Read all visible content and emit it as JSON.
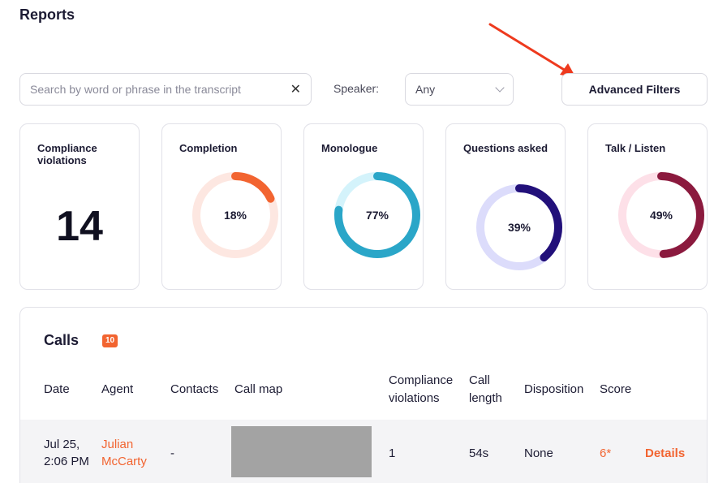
{
  "page": {
    "title": "Reports"
  },
  "filters": {
    "search_placeholder": "Search by word or phrase in the transcript",
    "search_value": "",
    "clear_symbol": "✕",
    "speaker_label": "Speaker:",
    "speaker_value": "Any",
    "advanced_filters_label": "Advanced Filters"
  },
  "metrics": [
    {
      "title": "Compliance violations",
      "value": "14"
    },
    {
      "title": "Completion",
      "percent": 18,
      "label": "18%",
      "color": "#f26430",
      "track": "#fde7e1"
    },
    {
      "title": "Monologue",
      "percent": 77,
      "label": "77%",
      "color": "#2aa6c8",
      "track": "#d4f3fb"
    },
    {
      "title": "Questions asked",
      "percent": 39,
      "label": "39%",
      "color": "#22107a",
      "track": "#dcdcfb"
    },
    {
      "title": "Talk / Listen",
      "percent": 49,
      "label": "49%",
      "color": "#8b1a3e",
      "track": "#fde0e8"
    }
  ],
  "calls": {
    "title": "Calls",
    "count": "10",
    "columns": {
      "date": "Date",
      "agent": "Agent",
      "contacts": "Contacts",
      "call_map": "Call map",
      "compliance_line1": "Compliance",
      "compliance_line2": "violations",
      "length_line1": "Call",
      "length_line2": "length",
      "disposition": "Disposition",
      "score": "Score"
    },
    "rows": [
      {
        "date_line1": "Jul 25,",
        "date_line2": "2:06 PM",
        "agent_line1": "Julian",
        "agent_line2": "McCarty",
        "contacts": "-",
        "compliance": "1",
        "length": "54s",
        "disposition": "None",
        "score": "6*",
        "details": "Details"
      }
    ]
  }
}
